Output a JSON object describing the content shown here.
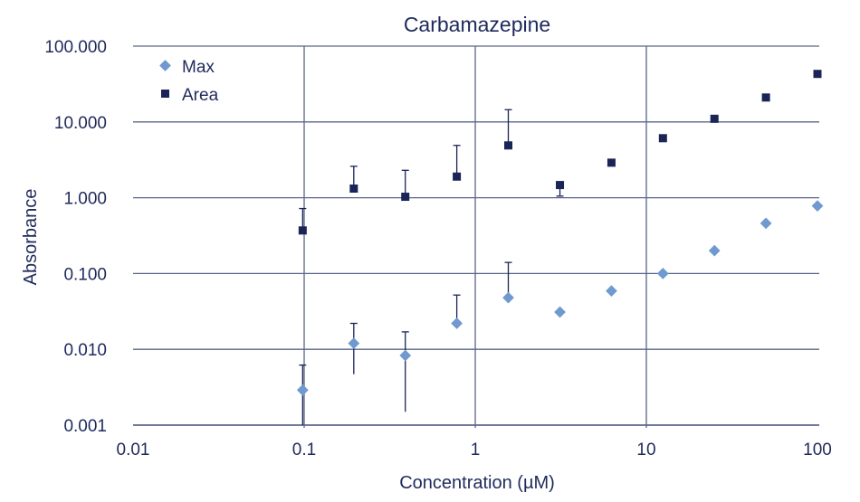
{
  "chart_data": {
    "type": "scatter",
    "title": "Carbamazepine",
    "xlabel": "Concentration (µM)",
    "ylabel": "Absorbance",
    "xscale": "log",
    "yscale": "log",
    "xlim": [
      0.01,
      120
    ],
    "ylim": [
      0.001,
      100
    ],
    "xticks": [
      0.01,
      0.1,
      1,
      10,
      100
    ],
    "xtick_labels": [
      "0.01",
      "0.1",
      "1",
      "10",
      "100"
    ],
    "yticks": [
      0.001,
      0.01,
      0.1,
      1,
      10,
      100
    ],
    "ytick_labels": [
      "0.001",
      "0.010",
      "0.100",
      "1.000",
      "10.000",
      "100.000"
    ],
    "grid": true,
    "legend": "top-left",
    "x": [
      0.098,
      0.195,
      0.39,
      0.78,
      1.56,
      3.125,
      6.25,
      12.5,
      25,
      50,
      100
    ],
    "series": [
      {
        "name": "Max",
        "marker": "diamond",
        "color": "#7099cf",
        "values": [
          0.0029,
          0.012,
          0.0083,
          0.022,
          0.048,
          0.031,
          0.059,
          0.1,
          0.2,
          0.46,
          0.78
        ],
        "error_upper": [
          0.0062,
          0.022,
          0.017,
          0.052,
          0.14,
          null,
          null,
          null,
          null,
          null,
          null
        ],
        "error_lower": [
          0.001,
          0.0047,
          0.0015,
          0.019,
          null,
          null,
          null,
          null,
          null,
          null,
          null
        ]
      },
      {
        "name": "Area",
        "marker": "square",
        "color": "#1a2456",
        "values": [
          0.37,
          1.32,
          1.03,
          1.9,
          4.9,
          1.47,
          2.9,
          6.1,
          11,
          21,
          43
        ],
        "error_upper": [
          0.72,
          2.6,
          2.3,
          4.9,
          14.5,
          null,
          null,
          null,
          null,
          null,
          null
        ],
        "error_lower": [
          null,
          null,
          null,
          null,
          null,
          1.05,
          null,
          null,
          null,
          null,
          null
        ]
      }
    ]
  }
}
